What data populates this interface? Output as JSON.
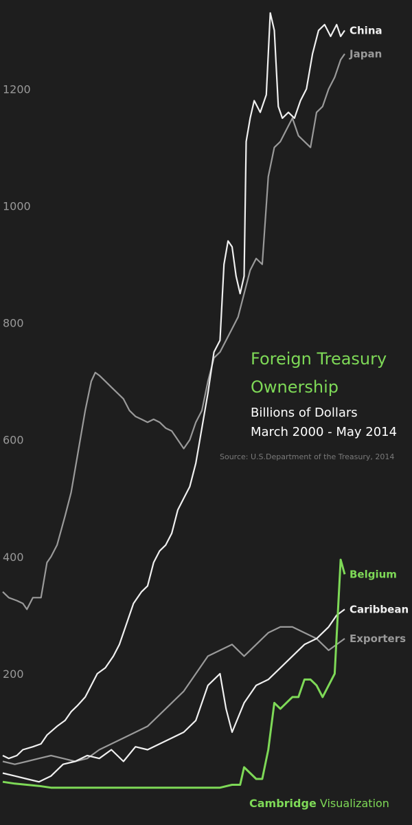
{
  "chart_data": {
    "type": "line",
    "title_line1": "Foreign Treasury",
    "title_line2": "Ownership",
    "subtitle_line1": "Billions of Dollars",
    "subtitle_line2": "March 2000 - May 2014",
    "source": "Source: U.S.Department of the Treasury, 2014",
    "brand_bold": "Cambridge",
    "brand_regular": " Visualization",
    "x_range": [
      "2000-03",
      "2014-05"
    ],
    "ylim": [
      0,
      1350
    ],
    "y_ticks": [
      200,
      400,
      600,
      800,
      1000,
      1200
    ],
    "grid": false,
    "legend": "inline labels at line ends",
    "colors": {
      "background": "#1e1e1e",
      "accent": "#7ed957",
      "white": "#f0f0f0",
      "gray": "#9a9a9a"
    },
    "series": [
      {
        "name": "Japan",
        "color": "#9a9a9a",
        "points": [
          [
            "2000-03",
            340
          ],
          [
            "2000-06",
            330
          ],
          [
            "2000-10",
            325
          ],
          [
            "2001-01",
            320
          ],
          [
            "2001-03",
            310
          ],
          [
            "2001-06",
            330
          ],
          [
            "2001-10",
            330
          ],
          [
            "2002-01",
            390
          ],
          [
            "2002-03",
            400
          ],
          [
            "2002-06",
            420
          ],
          [
            "2002-10",
            470
          ],
          [
            "2003-01",
            510
          ],
          [
            "2003-04",
            570
          ],
          [
            "2003-08",
            650
          ],
          [
            "2003-11",
            700
          ],
          [
            "2004-01",
            715
          ],
          [
            "2004-03",
            710
          ],
          [
            "2004-06",
            700
          ],
          [
            "2004-09",
            690
          ],
          [
            "2004-12",
            680
          ],
          [
            "2005-03",
            670
          ],
          [
            "2005-06",
            650
          ],
          [
            "2005-09",
            640
          ],
          [
            "2005-12",
            635
          ],
          [
            "2006-03",
            630
          ],
          [
            "2006-06",
            635
          ],
          [
            "2006-09",
            630
          ],
          [
            "2006-12",
            620
          ],
          [
            "2007-03",
            615
          ],
          [
            "2007-06",
            600
          ],
          [
            "2007-09",
            585
          ],
          [
            "2007-12",
            600
          ],
          [
            "2008-03",
            630
          ],
          [
            "2008-06",
            650
          ],
          [
            "2008-09",
            700
          ],
          [
            "2008-12",
            740
          ],
          [
            "2009-03",
            750
          ],
          [
            "2009-06",
            770
          ],
          [
            "2009-09",
            790
          ],
          [
            "2009-12",
            810
          ],
          [
            "2010-03",
            850
          ],
          [
            "2010-06",
            890
          ],
          [
            "2010-09",
            910
          ],
          [
            "2010-12",
            900
          ],
          [
            "2011-03",
            1050
          ],
          [
            "2011-06",
            1100
          ],
          [
            "2011-09",
            1110
          ],
          [
            "2011-12",
            1130
          ],
          [
            "2012-03",
            1150
          ],
          [
            "2012-06",
            1120
          ],
          [
            "2012-09",
            1110
          ],
          [
            "2012-12",
            1100
          ],
          [
            "2013-03",
            1160
          ],
          [
            "2013-06",
            1170
          ],
          [
            "2013-09",
            1200
          ],
          [
            "2013-12",
            1220
          ],
          [
            "2014-03",
            1250
          ],
          [
            "2014-05",
            1260
          ]
        ]
      },
      {
        "name": "China",
        "color": "#f0f0f0",
        "points": [
          [
            "2000-03",
            60
          ],
          [
            "2000-06",
            55
          ],
          [
            "2000-10",
            60
          ],
          [
            "2001-01",
            70
          ],
          [
            "2001-06",
            75
          ],
          [
            "2001-10",
            80
          ],
          [
            "2002-01",
            95
          ],
          [
            "2002-06",
            110
          ],
          [
            "2002-10",
            120
          ],
          [
            "2003-01",
            135
          ],
          [
            "2003-04",
            145
          ],
          [
            "2003-08",
            160
          ],
          [
            "2003-11",
            180
          ],
          [
            "2004-02",
            200
          ],
          [
            "2004-06",
            210
          ],
          [
            "2004-10",
            230
          ],
          [
            "2005-01",
            250
          ],
          [
            "2005-04",
            280
          ],
          [
            "2005-08",
            320
          ],
          [
            "2005-12",
            340
          ],
          [
            "2006-03",
            350
          ],
          [
            "2006-06",
            390
          ],
          [
            "2006-09",
            410
          ],
          [
            "2006-12",
            420
          ],
          [
            "2007-03",
            440
          ],
          [
            "2007-06",
            480
          ],
          [
            "2007-09",
            500
          ],
          [
            "2007-12",
            520
          ],
          [
            "2008-03",
            560
          ],
          [
            "2008-06",
            620
          ],
          [
            "2008-09",
            680
          ],
          [
            "2008-12",
            750
          ],
          [
            "2009-03,",
            770
          ],
          [
            "2009-05",
            900
          ],
          [
            "2009-07",
            940
          ],
          [
            "2009-09",
            930
          ],
          [
            "2009-11",
            880
          ],
          [
            "2010-01",
            850
          ],
          [
            "2010-03",
            880
          ],
          [
            "2010-04",
            1110
          ],
          [
            "2010-06",
            1150
          ],
          [
            "2010-08",
            1180
          ],
          [
            "2010-11",
            1160
          ],
          [
            "2011-02",
            1190
          ],
          [
            "2011-04",
            1330
          ],
          [
            "2011-06",
            1300
          ],
          [
            "2011-08",
            1170
          ],
          [
            "2011-10",
            1150
          ],
          [
            "2012-01",
            1160
          ],
          [
            "2012-04",
            1150
          ],
          [
            "2012-07",
            1180
          ],
          [
            "2012-10",
            1200
          ],
          [
            "2013-01",
            1260
          ],
          [
            "2013-04",
            1300
          ],
          [
            "2013-07",
            1310
          ],
          [
            "2013-10",
            1290
          ],
          [
            "2014-01",
            1310
          ],
          [
            "2014-03",
            1290
          ],
          [
            "2014-05",
            1300
          ]
        ]
      },
      {
        "name": "Exporters",
        "color": "#9a9a9a",
        "points": [
          [
            "2000-03",
            50
          ],
          [
            "2000-09",
            45
          ],
          [
            "2001-03",
            50
          ],
          [
            "2001-09",
            55
          ],
          [
            "2002-03",
            60
          ],
          [
            "2002-09",
            55
          ],
          [
            "2003-03",
            50
          ],
          [
            "2003-09",
            55
          ],
          [
            "2004-03",
            70
          ],
          [
            "2004-09",
            80
          ],
          [
            "2005-03",
            90
          ],
          [
            "2005-09",
            100
          ],
          [
            "2006-03",
            110
          ],
          [
            "2006-09",
            130
          ],
          [
            "2007-03",
            150
          ],
          [
            "2007-09",
            170
          ],
          [
            "2008-03",
            200
          ],
          [
            "2008-09",
            230
          ],
          [
            "2009-03",
            240
          ],
          [
            "2009-09",
            250
          ],
          [
            "2010-03",
            230
          ],
          [
            "2010-09",
            250
          ],
          [
            "2011-03",
            270
          ],
          [
            "2011-09",
            280
          ],
          [
            "2012-03",
            280
          ],
          [
            "2012-09",
            270
          ],
          [
            "2013-03",
            260
          ],
          [
            "2013-09",
            240
          ],
          [
            "2014-01",
            250
          ],
          [
            "2014-05",
            260
          ]
        ]
      },
      {
        "name": "Caribbean",
        "color": "#f0f0f0",
        "points": [
          [
            "2000-03",
            30
          ],
          [
            "2000-09",
            25
          ],
          [
            "2001-03",
            20
          ],
          [
            "2001-09",
            15
          ],
          [
            "2002-03",
            25
          ],
          [
            "2002-09",
            45
          ],
          [
            "2003-03",
            50
          ],
          [
            "2003-09",
            60
          ],
          [
            "2004-03",
            55
          ],
          [
            "2004-09",
            70
          ],
          [
            "2005-03",
            50
          ],
          [
            "2005-09",
            75
          ],
          [
            "2006-03",
            70
          ],
          [
            "2006-09",
            80
          ],
          [
            "2007-03",
            90
          ],
          [
            "2007-09",
            100
          ],
          [
            "2008-03",
            120
          ],
          [
            "2008-09",
            180
          ],
          [
            "2009-03",
            200
          ],
          [
            "2009-06",
            140
          ],
          [
            "2009-09",
            100
          ],
          [
            "2010-03",
            150
          ],
          [
            "2010-09",
            180
          ],
          [
            "2011-03",
            190
          ],
          [
            "2011-09",
            210
          ],
          [
            "2012-03",
            230
          ],
          [
            "2012-09",
            250
          ],
          [
            "2013-03",
            260
          ],
          [
            "2013-09",
            280
          ],
          [
            "2014-01",
            300
          ],
          [
            "2014-05",
            310
          ]
        ]
      },
      {
        "name": "Belgium",
        "color": "#7ed957",
        "points": [
          [
            "2000-03",
            15
          ],
          [
            "2000-09",
            12
          ],
          [
            "2001-03",
            10
          ],
          [
            "2001-09",
            8
          ],
          [
            "2002-03",
            5
          ],
          [
            "2002-09",
            5
          ],
          [
            "2003-03",
            5
          ],
          [
            "2003-09",
            5
          ],
          [
            "2004-03",
            5
          ],
          [
            "2004-09",
            5
          ],
          [
            "2005-03",
            5
          ],
          [
            "2005-09",
            5
          ],
          [
            "2006-03",
            5
          ],
          [
            "2006-09",
            5
          ],
          [
            "2007-03",
            5
          ],
          [
            "2007-09",
            5
          ],
          [
            "2008-03",
            5
          ],
          [
            "2008-09",
            5
          ],
          [
            "2009-03",
            5
          ],
          [
            "2009-09",
            10
          ],
          [
            "2010-01",
            10
          ],
          [
            "2010-03",
            40
          ],
          [
            "2010-06",
            30
          ],
          [
            "2010-09",
            20
          ],
          [
            "2010-12",
            20
          ],
          [
            "2011-03",
            70
          ],
          [
            "2011-06",
            150
          ],
          [
            "2011-09",
            140
          ],
          [
            "2011-12",
            150
          ],
          [
            "2012-03",
            160
          ],
          [
            "2012-06",
            160
          ],
          [
            "2012-09",
            190
          ],
          [
            "2012-12",
            190
          ],
          [
            "2013-03",
            180
          ],
          [
            "2013-06",
            160
          ],
          [
            "2013-09",
            180
          ],
          [
            "2013-12",
            200
          ],
          [
            "2014-03",
            395
          ],
          [
            "2014-05",
            370
          ]
        ]
      }
    ]
  }
}
